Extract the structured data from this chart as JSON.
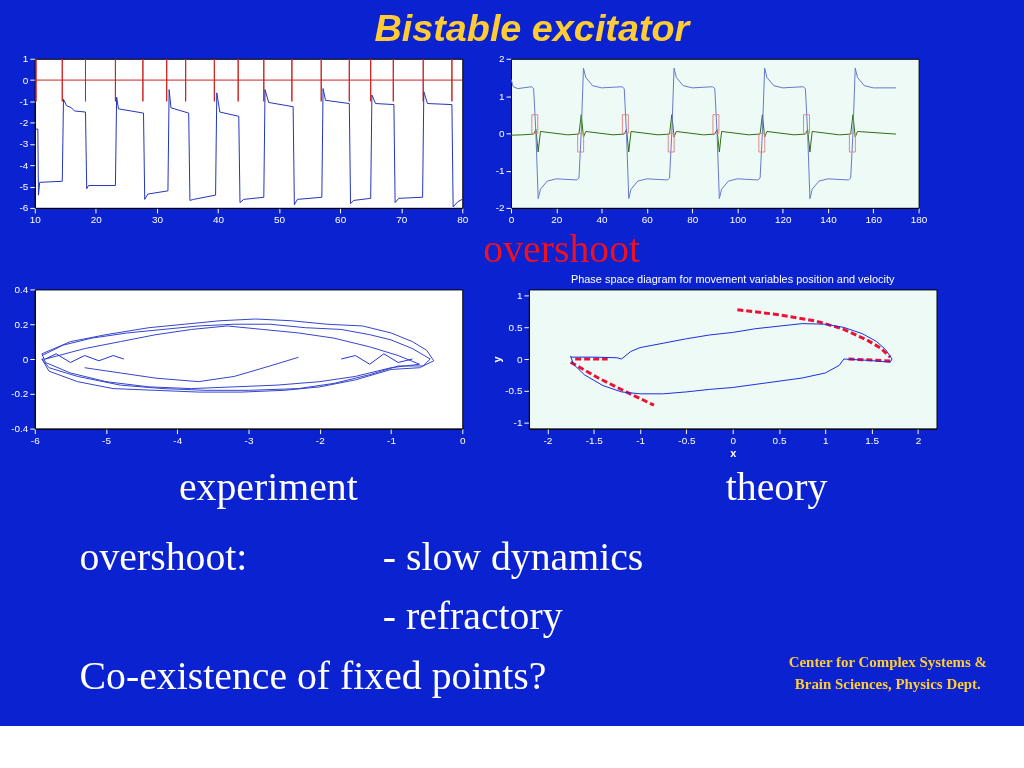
{
  "chart_data": [
    {
      "type": "line",
      "annotations": [
        "Bistable excitator",
        "overshoot",
        "experiment",
        "theory",
        "overshoot:",
        "- slow dynamics",
        "- refractory",
        "Co-existence of fixed points?",
        "Center for Complex Systems &\nBrain Sciences, Physics Dept."
      ],
      "xlim": [
        10,
        80
      ],
      "ylim": [
        -6,
        1
      ],
      "xticks": [
        10,
        20,
        30,
        40,
        50,
        60,
        70,
        80
      ],
      "yticks": [
        -6,
        -5,
        -4,
        -3,
        -2,
        -1,
        0,
        1
      ],
      "grid": false,
      "marker": "none",
      "line_style": "solid",
      "series": [
        {
          "color": "#cc2222",
          "x": [
            10,
            10.2,
            10.2,
            10.2,
            10.2,
            14.5,
            14.5,
            14.5,
            14.5,
            18.3,
            18.3,
            18.3,
            18.3,
            23.2,
            23.2,
            23.2,
            23.2,
            27.7,
            27.7,
            27.7,
            27.7,
            31.6,
            31.6,
            31.6,
            31.6,
            34.7,
            34.7,
            34.7,
            34.7,
            39.4,
            39.4,
            39.4,
            39.4,
            43.3,
            43.3,
            43.3,
            43.3,
            47.5,
            47.5,
            47.5,
            47.5,
            52.1,
            52.1,
            52.1,
            52.1,
            56.9,
            56.9,
            56.9,
            56.9,
            61.5,
            61.5,
            61.5,
            61.5,
            65,
            65,
            65,
            65,
            68.7,
            68.7,
            68.7,
            68.7,
            73.6,
            73.6,
            73.6,
            73.6,
            78.3,
            78.3,
            78.3,
            78.3,
            80
          ],
          "values": [
            0,
            0,
            1,
            -1,
            0,
            0,
            1,
            -1,
            0,
            0,
            1,
            -1,
            0,
            0,
            1,
            -1,
            0,
            0,
            1,
            -1,
            0,
            0,
            1,
            -1,
            0,
            0,
            1,
            -1,
            0,
            0,
            1,
            -1,
            0,
            0,
            1,
            -1,
            0,
            0,
            1,
            -1,
            0,
            0,
            1,
            -1,
            0,
            0,
            1,
            -1,
            0,
            0,
            1,
            -1,
            0,
            0,
            1,
            -1,
            0,
            0,
            1,
            -1,
            0,
            0,
            1,
            -1,
            0,
            0,
            1,
            -1,
            0,
            0
          ]
        },
        {
          "color": "#2233bb",
          "x": [
            10.2,
            10.5,
            10.6,
            10.8,
            14.5,
            14.7,
            15.2,
            16,
            16.5,
            18.3,
            18.5,
            18.8,
            23.2,
            23.4,
            23.7,
            27.8,
            28,
            28.5,
            31.8,
            32,
            32.3,
            35.2,
            35.4,
            36,
            39.6,
            39.8,
            40.3,
            43.4,
            43.6,
            44.2,
            47.5,
            47.7,
            48.3,
            52.3,
            52.5,
            53,
            57,
            57.2,
            57.6,
            61.5,
            61.7,
            62.2,
            65,
            65.2,
            65.8,
            68.8,
            69,
            69.6,
            73.5,
            73.7,
            74.3,
            78.3,
            78.5,
            79.3,
            80
          ],
          "values": [
            -2.3,
            -2.3,
            -5.4,
            -4.8,
            -4.75,
            -0.9,
            -1.2,
            -1.3,
            -1.45,
            -1.5,
            -5.1,
            -4.95,
            -4.95,
            -0.8,
            -1.35,
            -1.55,
            -5.6,
            -5.35,
            -5.2,
            -0.45,
            -1.3,
            -1.55,
            -5.65,
            -5.6,
            -5.4,
            -0.6,
            -1.5,
            -1.7,
            -5.75,
            -5.6,
            -5.5,
            -0.45,
            -1.05,
            -1.25,
            -5.85,
            -5.6,
            -5.5,
            -0.4,
            -0.95,
            -1.1,
            -5.8,
            -5.65,
            -5.55,
            -0.7,
            -1.1,
            -1.15,
            -5.75,
            -5.55,
            -5.5,
            -0.55,
            -1.1,
            -1.15,
            -5.95,
            -5.7,
            -5.6
          ]
        }
      ]
    },
    {
      "type": "line",
      "xlim": [
        0,
        180
      ],
      "ylim": [
        -2,
        2
      ],
      "xticks": [
        0,
        20,
        40,
        60,
        80,
        100,
        120,
        140,
        160,
        180
      ],
      "yticks": [
        -2,
        -1,
        0,
        1,
        2
      ],
      "grid": false,
      "marker": "none",
      "line_style": "solid",
      "series": [
        {
          "color": "#2e6e14",
          "x": [
            0,
            5,
            10,
            11,
            12,
            13,
            25,
            30,
            31,
            32,
            33,
            45,
            50,
            51,
            52,
            53,
            65,
            70,
            71,
            72,
            73,
            85,
            90,
            91,
            92,
            93,
            105,
            110,
            111,
            112,
            113,
            125,
            130,
            131,
            132,
            133,
            145,
            150,
            151,
            152,
            153,
            170
          ],
          "values": [
            -0.05,
            -0.04,
            -0.02,
            0.1,
            -0.5,
            0.05,
            -0.04,
            -0.02,
            0.5,
            -0.1,
            0.05,
            -0.04,
            -0.02,
            0.1,
            -0.5,
            0.05,
            -0.04,
            -0.02,
            0.5,
            -0.1,
            0.05,
            -0.04,
            -0.02,
            0.1,
            -0.5,
            0.05,
            -0.04,
            -0.02,
            0.5,
            -0.1,
            0.05,
            -0.04,
            -0.02,
            0.1,
            -0.5,
            0.05,
            -0.04,
            -0.02,
            0.5,
            -0.1,
            0.05,
            -0.02
          ]
        },
        {
          "color": "#6677cc",
          "x": [
            0,
            1,
            3,
            9,
            10,
            11,
            12,
            13,
            16,
            20,
            29,
            30,
            31,
            32,
            33,
            36,
            40,
            49,
            50,
            51,
            52,
            53,
            56,
            60,
            69,
            70,
            71,
            72,
            73,
            76,
            80,
            89,
            90,
            91,
            92,
            93,
            96,
            100,
            109,
            110,
            111,
            112,
            113,
            116,
            120,
            129,
            130,
            131,
            132,
            133,
            136,
            140,
            149,
            150,
            151,
            152,
            153,
            156,
            160,
            170
          ],
          "values": [
            1.45,
            1.25,
            1.2,
            1.25,
            1.2,
            0,
            -1.75,
            -1.5,
            -1.28,
            -1.22,
            -1.25,
            -1.2,
            0,
            1.75,
            1.5,
            1.28,
            1.22,
            1.25,
            1.2,
            0,
            -1.75,
            -1.5,
            -1.28,
            -1.22,
            -1.25,
            -1.2,
            0,
            1.75,
            1.5,
            1.28,
            1.22,
            1.25,
            1.2,
            0,
            -1.75,
            -1.5,
            -1.28,
            -1.22,
            -1.25,
            -1.2,
            0,
            1.75,
            1.5,
            1.28,
            1.22,
            1.25,
            1.2,
            0,
            -1.75,
            -1.5,
            -1.28,
            -1.22,
            -1.25,
            -1.2,
            0,
            1.75,
            1.5,
            1.28,
            1.22,
            1.22
          ]
        },
        {
          "type": "bar",
          "color": "#e08888",
          "x": [
            10.5,
            30.75,
            50.5,
            70.75,
            90.5,
            110.75,
            130.5,
            150.75
          ],
          "values": [
            0.5,
            -0.5,
            0.5,
            -0.5,
            0.5,
            -0.5,
            0.5,
            -0.5
          ]
        }
      ]
    },
    {
      "type": "line",
      "xlim": [
        -6,
        0
      ],
      "ylim": [
        -0.4,
        0.4
      ],
      "xticks": [
        -6,
        -5,
        -4,
        -3,
        -2,
        -1,
        0
      ],
      "yticks": [
        -0.4,
        -0.2,
        0,
        0.2,
        0.4
      ],
      "grid": false,
      "marker": "none",
      "line_style": "solid",
      "series": [
        {
          "color": "#3344cc",
          "x": [
            -5.9,
            -5.6,
            -5.2,
            -4.7,
            -4.2,
            -3.7,
            -3.2,
            -2.7,
            -2.2,
            -1.7,
            -1.3,
            -1.0,
            -0.7,
            -0.45,
            -0.55,
            -0.9,
            -1.3,
            -1.8,
            -2.3,
            -3.0,
            -3.6,
            -4.2,
            -4.8,
            -5.4,
            -5.8,
            -5.9,
            -5.85,
            -5.3,
            -4.8,
            -4.3,
            -3.8,
            -3.3,
            -2.8,
            -2.3,
            -1.8,
            -1.3,
            -0.9,
            -0.6,
            -1.0,
            -1.5,
            -2.0,
            -2.6,
            -3.2,
            -3.8,
            -4.4,
            -5.0,
            -5.5,
            -5.85,
            -5.9,
            -5.5,
            -5.0,
            -4.4,
            -3.9,
            -3.4,
            -2.9,
            -2.4,
            -1.9,
            -1.4,
            -1.0,
            -0.7,
            -0.5,
            -0.4,
            -0.6,
            -1.0,
            -1.5,
            -2.0,
            -2.5,
            -3.1,
            -3.7,
            -4.3,
            -4.9,
            -5.4,
            -5.8,
            -5.9
          ],
          "values": [
            0.02,
            0.08,
            0.12,
            0.15,
            0.17,
            0.19,
            0.2,
            0.2,
            0.18,
            0.17,
            0.14,
            0.11,
            0.06,
            0.0,
            -0.04,
            -0.04,
            -0.09,
            -0.14,
            -0.17,
            -0.18,
            -0.18,
            -0.17,
            -0.15,
            -0.1,
            -0.05,
            0.0,
            0.0,
            0.06,
            0.1,
            0.14,
            0.17,
            0.19,
            0.17,
            0.15,
            0.12,
            0.07,
            0.02,
            -0.03,
            -0.05,
            -0.1,
            -0.13,
            -0.15,
            -0.16,
            -0.17,
            -0.16,
            -0.13,
            -0.08,
            -0.02,
            0.03,
            0.1,
            0.14,
            0.18,
            0.2,
            0.22,
            0.23,
            0.22,
            0.2,
            0.19,
            0.15,
            0.1,
            0.05,
            -0.01,
            -0.05,
            -0.06,
            -0.12,
            -0.16,
            -0.18,
            -0.19,
            -0.19,
            -0.18,
            -0.17,
            -0.13,
            -0.07,
            0.0
          ]
        },
        {
          "color": "#3344cc",
          "x": [
            -5.3,
            -4.8,
            -4.3,
            -3.7,
            -3.2,
            -2.7,
            -2.3
          ],
          "values": [
            -0.05,
            -0.08,
            -0.11,
            -0.13,
            -0.1,
            -0.04,
            0.01
          ]
        },
        {
          "color": "#2233dd",
          "x": [
            -5.85,
            -5.7,
            -5.5,
            -5.3,
            -5.1,
            -4.9,
            -4.75
          ],
          "values": [
            0.0,
            0.03,
            -0.02,
            0.02,
            -0.01,
            0.02,
            0.0
          ]
        },
        {
          "color": "#2233dd",
          "x": [
            -1.7,
            -1.5,
            -1.3,
            -1.1,
            -0.9,
            -0.7
          ],
          "values": [
            0.0,
            0.02,
            -0.03,
            0.03,
            -0.02,
            0.0
          ]
        }
      ]
    },
    {
      "type": "line",
      "title": "Phase space diagram for movement variables position and velocity",
      "xlabel": "x",
      "ylabel": "y",
      "xlim": [
        -2.2,
        2.2
      ],
      "ylim": [
        -1.1,
        1.1
      ],
      "xticks": [
        -2,
        -1.5,
        -1,
        -0.5,
        0,
        0.5,
        1,
        1.5,
        2
      ],
      "yticks": [
        -1,
        -0.5,
        0,
        0.5,
        1
      ],
      "grid": false,
      "marker": "none",
      "series": [
        {
          "color": "#1a2ee0",
          "line_style": "solid",
          "x": [
            -1.75,
            -1.5,
            -1.25,
            -1.2,
            -1.1,
            -1.0,
            -0.75,
            -0.5,
            -0.25,
            0,
            0.25,
            0.5,
            0.75,
            1.0,
            1.2,
            1.4,
            1.55,
            1.65,
            1.72,
            1.7,
            1.45,
            1.2,
            1.15,
            1.0,
            0.75,
            0.5,
            0.25,
            0,
            -0.25,
            -0.5,
            -0.75,
            -1.0,
            -1.2,
            -1.4,
            -1.6,
            -1.72,
            -1.75
          ],
          "values": [
            0.03,
            0.03,
            0.02,
            0.0,
            0.12,
            0.18,
            0.25,
            0.32,
            0.38,
            0.42,
            0.48,
            0.52,
            0.56,
            0.55,
            0.5,
            0.4,
            0.28,
            0.15,
            0.0,
            -0.05,
            -0.02,
            0.0,
            -0.1,
            -0.22,
            -0.3,
            -0.35,
            -0.4,
            -0.45,
            -0.48,
            -0.52,
            -0.55,
            -0.55,
            -0.52,
            -0.42,
            -0.25,
            -0.08,
            0.05
          ]
        },
        {
          "color": "#ee1133",
          "line_style": "dashed",
          "x": [
            0.05,
            0.5,
            0.9,
            1.2,
            1.45,
            1.6,
            1.7
          ],
          "values": [
            0.78,
            0.7,
            0.6,
            0.47,
            0.3,
            0.17,
            0.03
          ]
        },
        {
          "color": "#ee1133",
          "line_style": "dashed",
          "x": [
            1.25,
            1.7
          ],
          "values": [
            0.0,
            -0.03
          ]
        },
        {
          "color": "#ee1133",
          "line_style": "dashed",
          "x": [
            -1.75,
            -1.45,
            -1.15,
            -0.85
          ],
          "values": [
            -0.05,
            -0.3,
            -0.52,
            -0.73
          ]
        },
        {
          "color": "#ee1133",
          "line_style": "dashed",
          "x": [
            -1.7,
            -1.35
          ],
          "values": [
            0.0,
            0.0
          ]
        }
      ]
    }
  ]
}
